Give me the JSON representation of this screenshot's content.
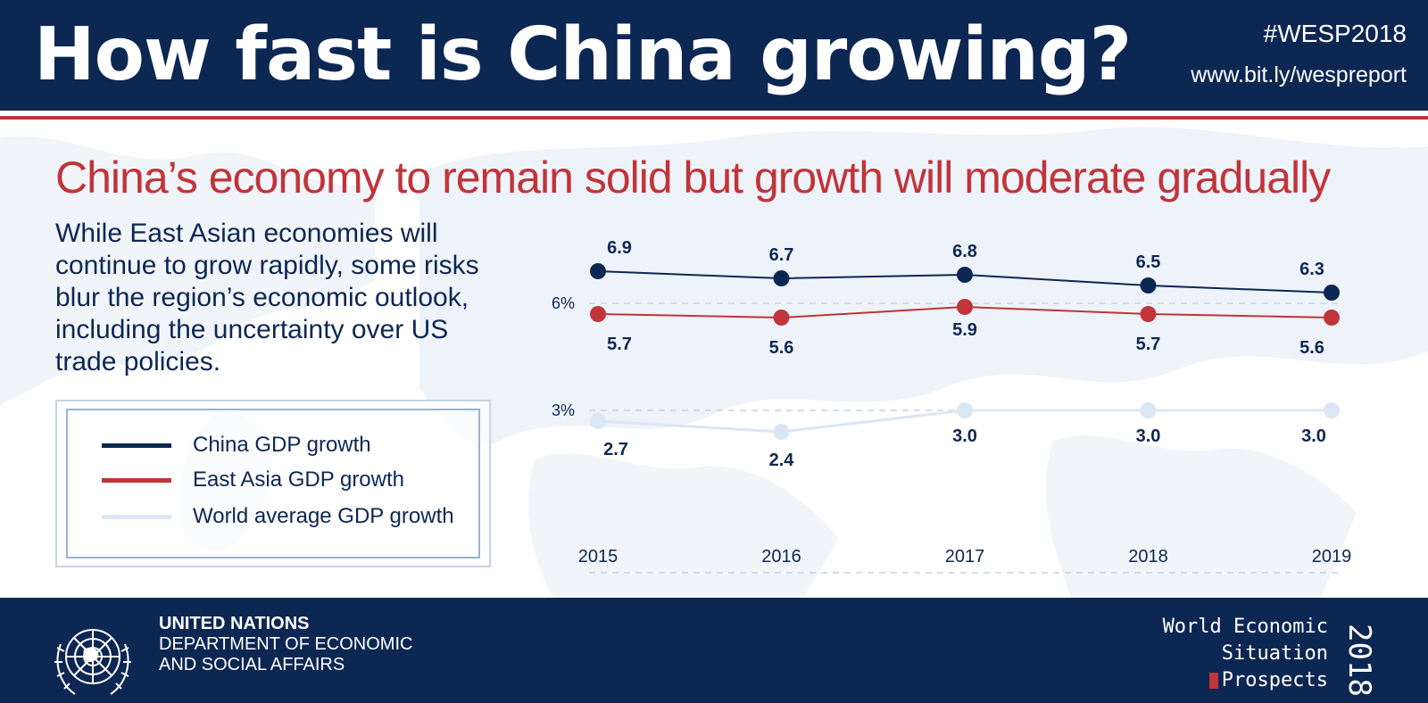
{
  "header": {
    "title": "How fast is China growing?",
    "hashtag": "#WESP2018",
    "url": "www.bit.ly/wespreport"
  },
  "subtitle": "China’s economy to remain solid but growth will moderate gradually",
  "intro": "While East Asian economies will continue to grow rapidly, some risks blur the region’s economic outlook, including the uncertainty over US trade policies.",
  "legend": {
    "items": [
      {
        "label": "China GDP growth",
        "color": "#0d2753"
      },
      {
        "label": "East Asia GDP growth",
        "color": "#c0343a"
      },
      {
        "label": "World average GDP growth",
        "color": "#dbe6f4"
      }
    ]
  },
  "chart_data": {
    "type": "line",
    "title": "",
    "xlabel": "",
    "ylabel": "",
    "x": [
      "2015",
      "2016",
      "2017",
      "2018",
      "2019"
    ],
    "ylim": [
      1.0,
      7.5
    ],
    "reference_lines": [
      {
        "value": 6,
        "label": "6%"
      },
      {
        "value": 3,
        "label": "3%"
      }
    ],
    "series": [
      {
        "name": "China GDP growth",
        "color": "#0d2753",
        "values": [
          6.9,
          6.7,
          6.8,
          6.5,
          6.3
        ],
        "labels": [
          "6.9",
          "6.7",
          "6.8",
          "6.5",
          "6.3"
        ],
        "label_side": "above"
      },
      {
        "name": "East Asia GDP growth",
        "color": "#c0343a",
        "values": [
          5.7,
          5.6,
          5.9,
          5.7,
          5.6
        ],
        "labels": [
          "5.7",
          "5.6",
          "5.9",
          "5.7",
          "5.6"
        ],
        "label_side": "below"
      },
      {
        "name": "World average GDP growth",
        "color": "#dbe6f4",
        "values": [
          2.7,
          2.4,
          3.0,
          3.0,
          3.0
        ],
        "labels": [
          "2.7",
          "2.4",
          "3.0",
          "3.0",
          "3.0"
        ],
        "label_side": "below"
      }
    ],
    "grid": false,
    "legend_position": "left"
  },
  "footer": {
    "org_line1": "UNITED NATIONS",
    "org_line2": "DEPARTMENT OF ECONOMIC",
    "org_line3": "AND SOCIAL AFFAIRS",
    "report_line1": "World Economic",
    "report_line2": "Situation",
    "report_line3": "Prospects",
    "report_year": "2018"
  }
}
